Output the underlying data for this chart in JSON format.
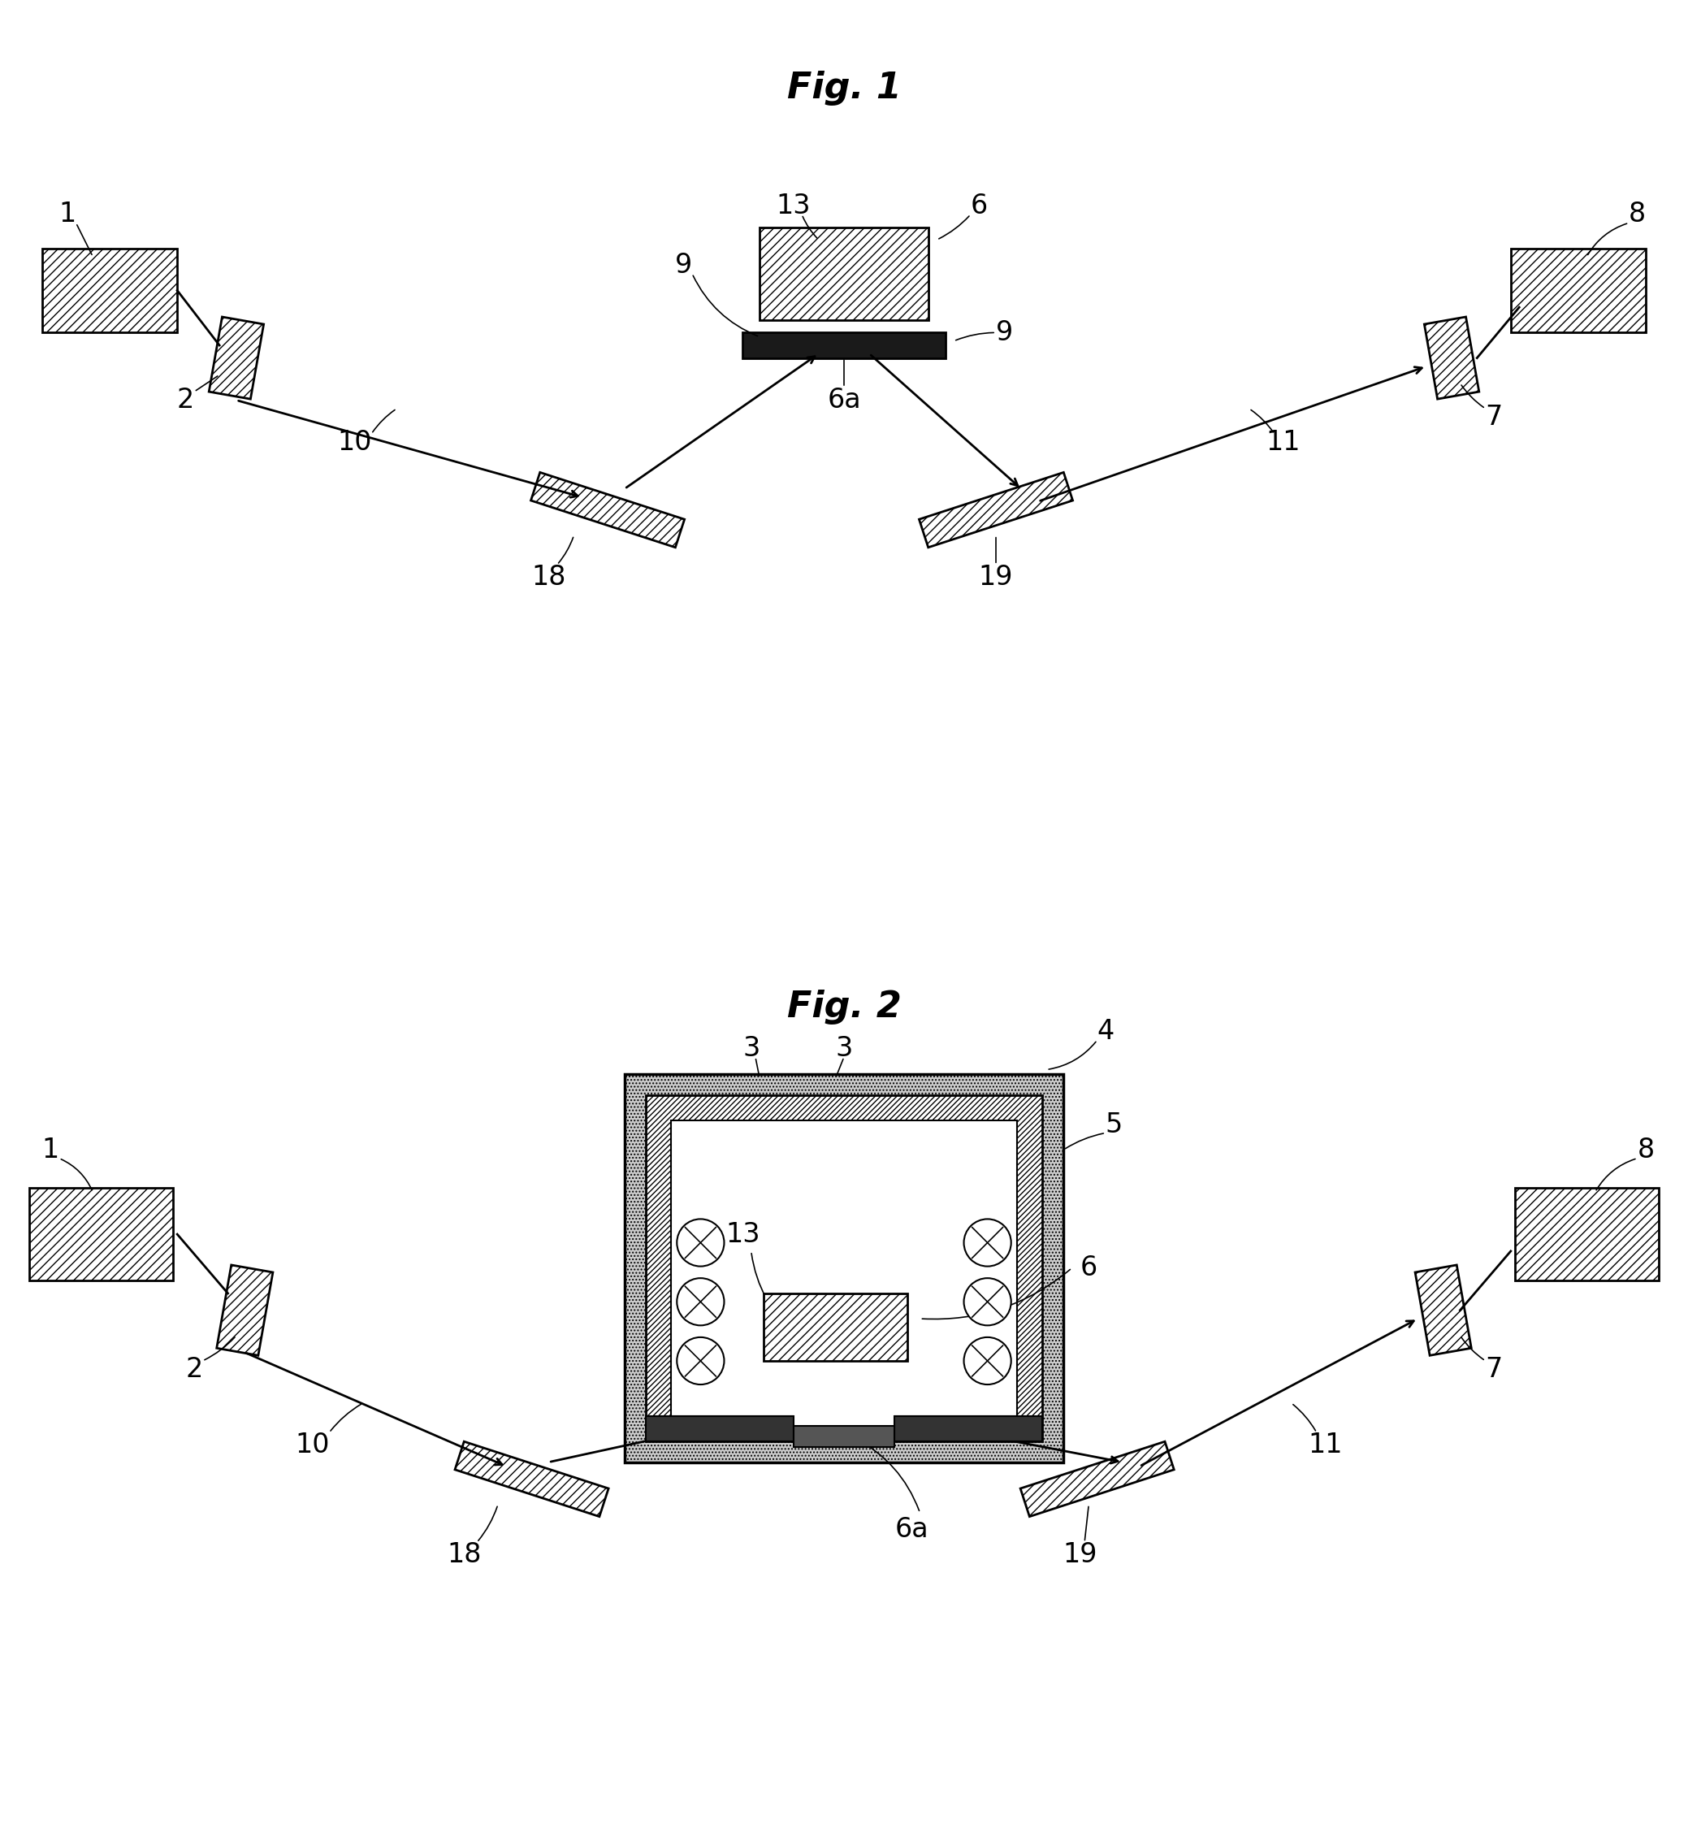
{
  "fig1_title": "Fig. 1",
  "fig2_title": "Fig. 2",
  "bg": "#ffffff",
  "lc": "#000000",
  "title_fs": 32,
  "label_fs": 24,
  "fw": 20.78,
  "fh": 22.61
}
